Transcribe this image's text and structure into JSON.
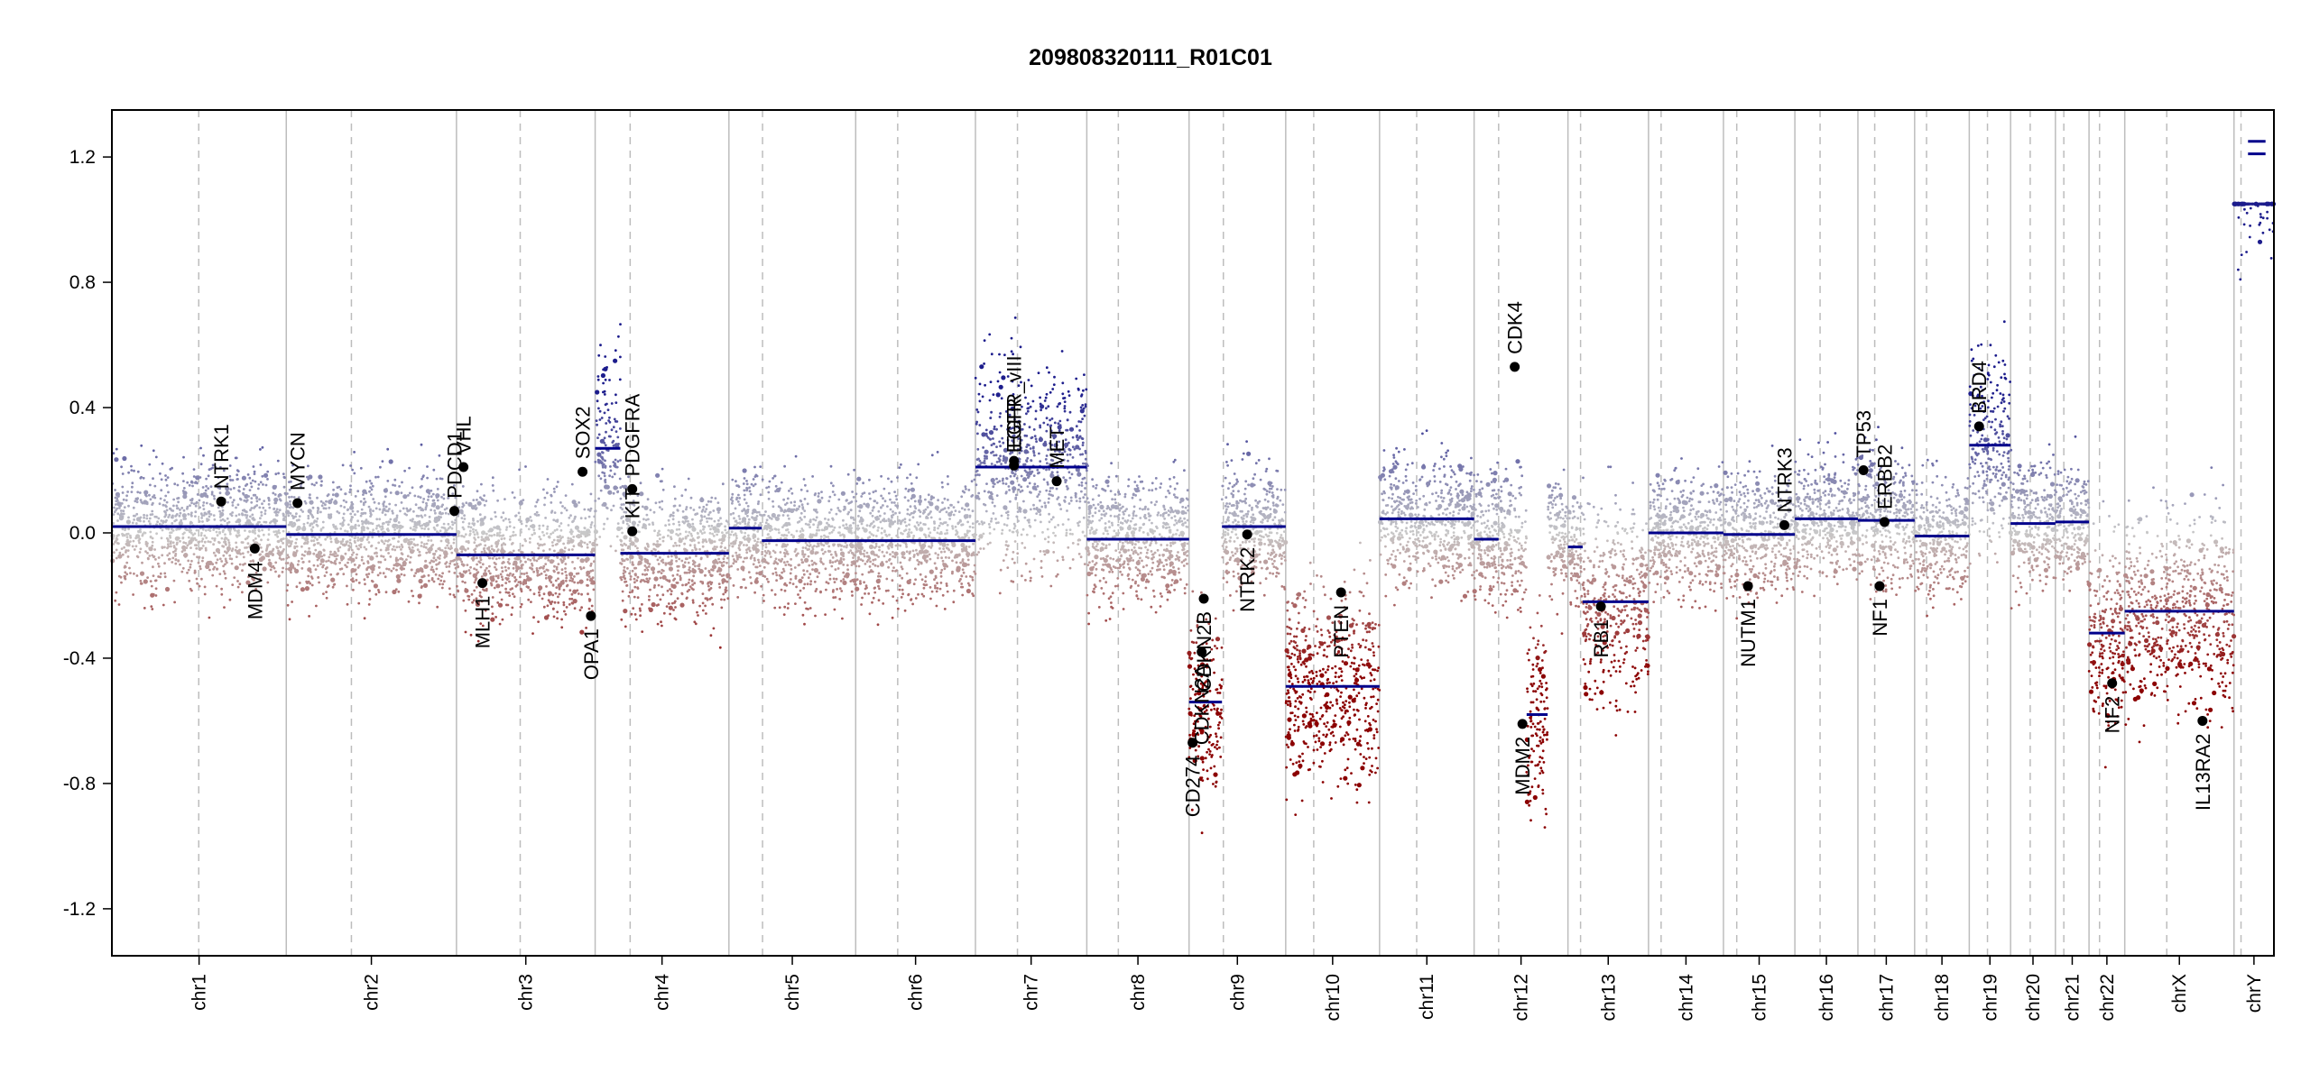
{
  "chart_data": {
    "type": "scatter",
    "title": "209808320111_R01C01",
    "xlabel": "",
    "ylabel": "",
    "ylim": [
      -1.35,
      1.35
    ],
    "yticks": [
      "1.2",
      "0.8",
      "0.4",
      "0.0",
      "-0.4",
      "-0.8",
      "-1.2"
    ],
    "ytick_values": [
      1.2,
      0.8,
      0.4,
      0.0,
      -0.4,
      -0.8,
      -1.2
    ],
    "colors": {
      "gain": "#1c1c8c",
      "loss": "#8b0000",
      "segment": "#00008b",
      "gene_point": "#000000",
      "neutral": "#c8c8c8"
    },
    "chromosomes": [
      {
        "name": "chr1",
        "start": 0,
        "end": 249,
        "centromere": 124
      },
      {
        "name": "chr2",
        "start": 249,
        "end": 492,
        "centromere": 93
      },
      {
        "name": "chr3",
        "start": 492,
        "end": 690,
        "centromere": 91
      },
      {
        "name": "chr4",
        "start": 690,
        "end": 881,
        "centromere": 50
      },
      {
        "name": "chr5",
        "start": 881,
        "end": 1062,
        "centromere": 48
      },
      {
        "name": "chr6",
        "start": 1062,
        "end": 1233,
        "centromere": 60
      },
      {
        "name": "chr7",
        "start": 1233,
        "end": 1392,
        "centromere": 60
      },
      {
        "name": "chr8",
        "start": 1392,
        "end": 1538,
        "centromere": 45
      },
      {
        "name": "chr9",
        "start": 1538,
        "end": 1676,
        "centromere": 49
      },
      {
        "name": "chr10",
        "start": 1676,
        "end": 1810,
        "centromere": 40
      },
      {
        "name": "chr11",
        "start": 1810,
        "end": 1945,
        "centromere": 53
      },
      {
        "name": "chr12",
        "start": 1945,
        "end": 2079,
        "centromere": 35
      },
      {
        "name": "chr13",
        "start": 2079,
        "end": 2194,
        "centromere": 18
      },
      {
        "name": "chr14",
        "start": 2194,
        "end": 2301,
        "centromere": 18
      },
      {
        "name": "chr15",
        "start": 2301,
        "end": 2403,
        "centromere": 19
      },
      {
        "name": "chr16",
        "start": 2403,
        "end": 2493,
        "centromere": 36
      },
      {
        "name": "chr17",
        "start": 2493,
        "end": 2574,
        "centromere": 24
      },
      {
        "name": "chr18",
        "start": 2574,
        "end": 2652,
        "centromere": 17
      },
      {
        "name": "chr19",
        "start": 2652,
        "end": 2711,
        "centromere": 26
      },
      {
        "name": "chr20",
        "start": 2711,
        "end": 2775,
        "centromere": 28
      },
      {
        "name": "chr21",
        "start": 2775,
        "end": 2823,
        "centromere": 12
      },
      {
        "name": "chr22",
        "start": 2823,
        "end": 2874,
        "centromere": 15
      },
      {
        "name": "chrX",
        "start": 2874,
        "end": 3030,
        "centromere": 60
      },
      {
        "name": "chrY",
        "start": 3030,
        "end": 3087,
        "centromere": 10
      }
    ],
    "segments": [
      {
        "x0": 0,
        "x1": 249,
        "y": 0.02
      },
      {
        "x0": 249,
        "x1": 492,
        "y": -0.005
      },
      {
        "x0": 492,
        "x1": 690,
        "y": -0.07
      },
      {
        "x0": 690,
        "x1": 726,
        "y": 0.27
      },
      {
        "x0": 726,
        "x1": 881,
        "y": -0.065
      },
      {
        "x0": 881,
        "x1": 928,
        "y": 0.015
      },
      {
        "x0": 928,
        "x1": 1233,
        "y": -0.025
      },
      {
        "x0": 1233,
        "x1": 1392,
        "y": 0.21
      },
      {
        "x0": 1392,
        "x1": 1538,
        "y": -0.02
      },
      {
        "x0": 1538,
        "x1": 1585,
        "y": -0.54
      },
      {
        "x0": 1585,
        "x1": 1676,
        "y": 0.02
      },
      {
        "x0": 1676,
        "x1": 1810,
        "y": -0.49
      },
      {
        "x0": 1810,
        "x1": 1945,
        "y": 0.045
      },
      {
        "x0": 1945,
        "x1": 1980,
        "y": -0.02
      },
      {
        "x0": 2020,
        "x1": 2050,
        "y": -0.58
      },
      {
        "x0": 2079,
        "x1": 2100,
        "y": -0.045
      },
      {
        "x0": 2100,
        "x1": 2194,
        "y": -0.22
      },
      {
        "x0": 2194,
        "x1": 2301,
        "y": 0.0
      },
      {
        "x0": 2301,
        "x1": 2403,
        "y": -0.005
      },
      {
        "x0": 2403,
        "x1": 2493,
        "y": 0.045
      },
      {
        "x0": 2493,
        "x1": 2574,
        "y": 0.04
      },
      {
        "x0": 2574,
        "x1": 2652,
        "y": -0.01
      },
      {
        "x0": 2652,
        "x1": 2711,
        "y": 0.28
      },
      {
        "x0": 2711,
        "x1": 2775,
        "y": 0.03
      },
      {
        "x0": 2775,
        "x1": 2823,
        "y": 0.035
      },
      {
        "x0": 2823,
        "x1": 2874,
        "y": -0.32
      },
      {
        "x0": 2874,
        "x1": 3030,
        "y": -0.25
      },
      {
        "x0": 3050,
        "x1": 3075,
        "y": 1.25
      },
      {
        "x0": 3050,
        "x1": 3075,
        "y": 1.21
      }
    ],
    "genes": [
      {
        "name": "NTRK1",
        "x": 156,
        "y": 0.1,
        "label_side": "above"
      },
      {
        "name": "MDM4",
        "x": 204,
        "y": -0.05,
        "label_side": "below"
      },
      {
        "name": "MYCN",
        "x": 265,
        "y": 0.095,
        "label_side": "above"
      },
      {
        "name": "PDCD1",
        "x": 489,
        "y": 0.07,
        "label_side": "above"
      },
      {
        "name": "VHL",
        "x": 502,
        "y": 0.21,
        "label_side": "above"
      },
      {
        "name": "MLH1",
        "x": 529,
        "y": -0.16,
        "label_side": "below"
      },
      {
        "name": "SOX2",
        "x": 672,
        "y": 0.195,
        "label_side": "above"
      },
      {
        "name": "OPA1",
        "x": 684,
        "y": -0.265,
        "label_side": "below"
      },
      {
        "name": "KIT",
        "x": 743,
        "y": 0.005,
        "label_side": "above"
      },
      {
        "name": "PDGFRA",
        "x": 743,
        "y": 0.14,
        "label_side": "above"
      },
      {
        "name": "EGFR",
        "x": 1288,
        "y": 0.215,
        "label_side": "above"
      },
      {
        "name": "EGFR_vIII",
        "x": 1288,
        "y": 0.23,
        "label_side": "above"
      },
      {
        "name": "MET",
        "x": 1349,
        "y": 0.165,
        "label_side": "above"
      },
      {
        "name": "CD274",
        "x": 1543,
        "y": -0.67,
        "label_side": "below"
      },
      {
        "name": "CDKN2A",
        "x": 1556,
        "y": -0.38,
        "label_side": "below"
      },
      {
        "name": "CDKN2B",
        "x": 1559,
        "y": -0.21,
        "label_side": "below"
      },
      {
        "name": "NTRK2",
        "x": 1621,
        "y": -0.005,
        "label_side": "below"
      },
      {
        "name": "PTEN",
        "x": 1755,
        "y": -0.19,
        "label_side": "below"
      },
      {
        "name": "CDK4",
        "x": 2003,
        "y": 0.53,
        "label_side": "above"
      },
      {
        "name": "MDM2",
        "x": 2014,
        "y": -0.61,
        "label_side": "below"
      },
      {
        "name": "RB1",
        "x": 2126,
        "y": -0.235,
        "label_side": "below"
      },
      {
        "name": "NUTM1",
        "x": 2336,
        "y": -0.17,
        "label_side": "below"
      },
      {
        "name": "NTRK3",
        "x": 2388,
        "y": 0.025,
        "label_side": "above"
      },
      {
        "name": "TP53",
        "x": 2501,
        "y": 0.2,
        "label_side": "above"
      },
      {
        "name": "ERBB2",
        "x": 2531,
        "y": 0.035,
        "label_side": "above"
      },
      {
        "name": "NF1",
        "x": 2524,
        "y": -0.17,
        "label_side": "below"
      },
      {
        "name": "BRD4",
        "x": 2666,
        "y": 0.34,
        "label_side": "above"
      },
      {
        "name": "NF2",
        "x": 2856,
        "y": -0.48,
        "label_side": "below"
      },
      {
        "name": "IL13RA2",
        "x": 2985,
        "y": -0.6,
        "label_side": "below"
      }
    ],
    "gene_labels": {
      "NTRK1": "NTRK1",
      "MDM4": "MDM4",
      "MYCN": "MYCN",
      "PDCD1": "PDCD1",
      "VHL": "VHL",
      "MLH1": "MLH1",
      "SOX2": "SOX2",
      "OPA1": "OPA1",
      "KIT": "KIT",
      "PDGFRA": "PDGFRA",
      "EGFR": "EGFR",
      "EGFR_vIII": "EGFR_vIII",
      "MET": "MET",
      "CD274": "CD274",
      "CDKN2A": "CDKN2A",
      "CDKN2B": "CDKN2B",
      "NTRK2": "NTRK2",
      "PTEN": "PTEN",
      "CDK4": "CDK4",
      "MDM2": "MDM2",
      "RB1": "RB1",
      "NUTM1": "NUTM1",
      "NTRK3": "NTRK3",
      "TP53": "TP53",
      "ERBB2": "ERBB2",
      "NF1": "NF1",
      "BRD4": "BRD4",
      "NF2": "NF2",
      "IL13RA2": "IL13RA2"
    }
  }
}
